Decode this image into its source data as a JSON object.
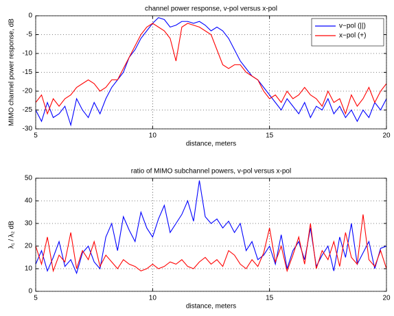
{
  "chart_data": [
    {
      "type": "line",
      "title": "channel power response, v-pol versus x-pol",
      "xlabel": "distance, meters",
      "ylabel": "MIMO channel power response, dB",
      "x": [
        5,
        5.25,
        5.5,
        5.75,
        6,
        6.25,
        6.5,
        6.75,
        7,
        7.25,
        7.5,
        7.75,
        8,
        8.25,
        8.5,
        8.75,
        9,
        9.25,
        9.5,
        9.75,
        10,
        10.25,
        10.5,
        10.75,
        11,
        11.25,
        11.5,
        11.75,
        12,
        12.25,
        12.5,
        12.75,
        13,
        13.25,
        13.5,
        13.75,
        14,
        14.25,
        14.5,
        14.75,
        15,
        15.25,
        15.5,
        15.75,
        16,
        16.25,
        16.5,
        16.75,
        17,
        17.25,
        17.5,
        17.75,
        18,
        18.25,
        18.5,
        18.75,
        19,
        19.25,
        19.5,
        19.75,
        20
      ],
      "series": [
        {
          "name": "v−pol (||)",
          "color": "#0000ff",
          "values": [
            -25,
            -28,
            -23,
            -27,
            -26,
            -24,
            -29,
            -22,
            -25,
            -27,
            -23,
            -26,
            -22,
            -19,
            -17,
            -15,
            -11,
            -9,
            -6,
            -4,
            -2,
            -0.5,
            -1,
            -3,
            -2.5,
            -1.5,
            -1.5,
            -2,
            -1.5,
            -2.5,
            -4,
            -3,
            -4,
            -6,
            -9,
            -12,
            -14,
            -16,
            -17,
            -19,
            -21,
            -23,
            -25,
            -22,
            -24,
            -26,
            -23,
            -27,
            -24,
            -25,
            -22,
            -26,
            -24,
            -27,
            -25,
            -28,
            -25,
            -27,
            -23,
            -25,
            -22
          ]
        },
        {
          "name": "x−pol (+)",
          "color": "#ff0000",
          "values": [
            -23,
            -21,
            -26,
            -22,
            -24,
            -22,
            -21,
            -19,
            -18,
            -17,
            -18,
            -20,
            -19,
            -17,
            -17,
            -14,
            -11,
            -8,
            -5,
            -3,
            -2,
            -3,
            -4,
            -6,
            -12,
            -3,
            -2,
            -2.5,
            -3,
            -4,
            -5,
            -9,
            -13,
            -14,
            -13,
            -13,
            -15,
            -16,
            -17,
            -20,
            -22,
            -21,
            -23,
            -20,
            -22,
            -21,
            -19,
            -21,
            -22,
            -24,
            -20,
            -23,
            -22,
            -26,
            -21,
            -24,
            -22,
            -19,
            -23,
            -20,
            -18
          ]
        }
      ],
      "xlim": [
        5,
        20
      ],
      "ylim": [
        -30,
        0
      ],
      "xticks": [
        5,
        10,
        15,
        20
      ],
      "yticks": [
        -30,
        -25,
        -20,
        -15,
        -10,
        -5,
        0
      ],
      "grid": true,
      "legend": "upper right"
    },
    {
      "type": "line",
      "title": "ratio of MIMO subchannel powers, v-pol versus x-pol",
      "xlabel": "distance, meters",
      "ylabel": "λ₁ / λ₂ dB",
      "x": [
        5,
        5.25,
        5.5,
        5.75,
        6,
        6.25,
        6.5,
        6.75,
        7,
        7.25,
        7.5,
        7.75,
        8,
        8.25,
        8.5,
        8.75,
        9,
        9.25,
        9.5,
        9.75,
        10,
        10.25,
        10.5,
        10.75,
        11,
        11.25,
        11.5,
        11.75,
        12,
        12.25,
        12.5,
        12.75,
        13,
        13.25,
        13.5,
        13.75,
        14,
        14.25,
        14.5,
        14.75,
        15,
        15.25,
        15.5,
        15.75,
        16,
        16.25,
        16.5,
        16.75,
        17,
        17.25,
        17.5,
        17.75,
        18,
        18.25,
        18.5,
        18.75,
        19,
        19.25,
        19.5,
        19.75,
        20
      ],
      "series": [
        {
          "color": "#0000ff",
          "values": [
            12,
            18,
            9,
            15,
            22,
            11,
            14,
            8,
            17,
            20,
            13,
            10,
            24,
            30,
            18,
            33,
            27,
            22,
            35,
            28,
            24,
            32,
            38,
            26,
            30,
            34,
            40,
            31,
            49,
            33,
            30,
            32,
            28,
            31,
            26,
            30,
            18,
            22,
            14,
            16,
            20,
            12,
            25,
            10,
            18,
            22,
            14,
            28,
            11,
            16,
            20,
            9,
            24,
            15,
            30,
            12,
            17,
            22,
            10,
            19,
            20
          ]
        },
        {
          "color": "#ff0000",
          "values": [
            20,
            12,
            24,
            9,
            16,
            13,
            26,
            10,
            18,
            14,
            22,
            11,
            16,
            13,
            10,
            14,
            12,
            11,
            9,
            10,
            12,
            10,
            11,
            13,
            12,
            14,
            11,
            10,
            13,
            15,
            12,
            14,
            11,
            18,
            16,
            12,
            10,
            14,
            11,
            17,
            28,
            13,
            20,
            9,
            16,
            24,
            12,
            30,
            10,
            18,
            14,
            22,
            11,
            26,
            15,
            12,
            34,
            14,
            11,
            18,
            10
          ]
        }
      ],
      "xlim": [
        5,
        20
      ],
      "ylim": [
        0,
        50
      ],
      "xticks": [
        5,
        10,
        15,
        20
      ],
      "yticks": [
        0,
        10,
        20,
        30,
        40,
        50
      ],
      "grid": true
    }
  ]
}
